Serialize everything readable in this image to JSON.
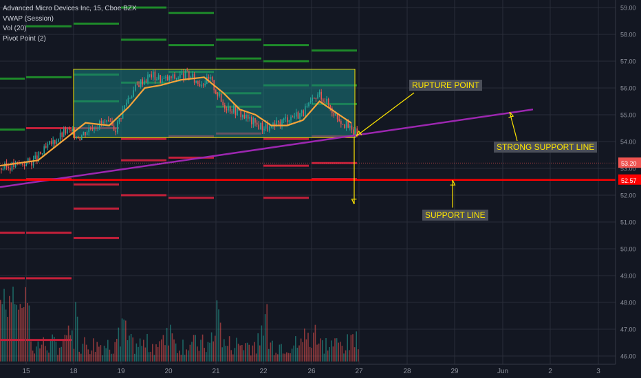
{
  "legend": {
    "title": "Advanced Micro Devices Inc, 15, Cboe BZX",
    "indicator1": "VWAP (Session)",
    "indicator2": "Vol (20)",
    "indicator3": "Pivot Point (2)"
  },
  "annotations": {
    "rupture": "RUPTURE POINT",
    "strong_support": "STRONG SUPPORT LINE",
    "support": "SUPPORT LINE"
  },
  "price_labels": {
    "last": "53.20",
    "support": "52.57"
  },
  "colors": {
    "background": "#131722",
    "grid": "#2a2e39",
    "candle_up": "#26a69a",
    "candle_down": "#ef5350",
    "vwap": "#f7a43a",
    "trendline": "#9c27b0",
    "support": "#ff0000",
    "box_fill": "#1a7b80",
    "box_border": "#ffe600",
    "annotation_text": "#ffe600",
    "pivot_green": "#1e8a2a",
    "pivot_red": "#c4203a",
    "last_price": "#ef5350"
  },
  "chart_data": {
    "type": "candlestick",
    "title": "Advanced Micro Devices Inc, 15, Cboe BZX",
    "x_ticks": [
      "15",
      "18",
      "19",
      "20",
      "21",
      "22",
      "26",
      "27",
      "28",
      "29",
      "Jun",
      "2",
      "3"
    ],
    "y_ticks": [
      "46.00",
      "47.00",
      "48.00",
      "49.00",
      "50.00",
      "51.00",
      "52.00",
      "53.00",
      "54.00",
      "55.00",
      "56.00",
      "57.00",
      "58.00",
      "59.00"
    ],
    "ylim": [
      45.85,
      59.15
    ],
    "series": [
      {
        "name": "Price",
        "points": [
          [
            "15",
            53.3
          ],
          [
            "15",
            53.9
          ],
          [
            "15",
            54.4
          ],
          [
            "18",
            54.2
          ],
          [
            "18",
            54.6
          ],
          [
            "18",
            54.7
          ],
          [
            "18",
            54.5
          ],
          [
            "19",
            55.6
          ],
          [
            "19",
            56.2
          ],
          [
            "19",
            56.5
          ],
          [
            "19",
            56.3
          ],
          [
            "20",
            56.4
          ],
          [
            "20",
            56.5
          ],
          [
            "20",
            56.2
          ],
          [
            "20",
            56.3
          ],
          [
            "21",
            55.4
          ],
          [
            "21",
            55.2
          ],
          [
            "21",
            54.9
          ],
          [
            "21",
            54.6
          ],
          [
            "22",
            54.5
          ],
          [
            "22",
            54.9
          ],
          [
            "22",
            55.1
          ],
          [
            "26",
            55.8
          ],
          [
            "26",
            55.0
          ],
          [
            "26",
            54.4
          ],
          [
            "27",
            54.1
          ],
          [
            "27",
            53.2
          ]
        ]
      },
      {
        "name": "VWAP (Session)",
        "points": [
          [
            "15",
            53.3
          ],
          [
            "15",
            54.0
          ],
          [
            "18",
            54.7
          ],
          [
            "18",
            54.6
          ],
          [
            "19",
            55.3
          ],
          [
            "19",
            56.0
          ],
          [
            "19",
            56.1
          ],
          [
            "20",
            56.3
          ],
          [
            "20",
            56.4
          ],
          [
            "21",
            55.8
          ],
          [
            "21",
            55.2
          ],
          [
            "21",
            55.0
          ],
          [
            "22",
            54.6
          ],
          [
            "22",
            54.6
          ],
          [
            "22",
            54.8
          ],
          [
            "26",
            55.5
          ],
          [
            "26",
            55.1
          ],
          [
            "26",
            54.7
          ]
        ]
      }
    ],
    "support_level": 52.57,
    "last_price": 53.2,
    "consolidation_box": {
      "x_from": "18",
      "x_to": "27",
      "y_from": 54.15,
      "y_to": 56.7
    },
    "trendline": {
      "from": [
        "15",
        52.3
      ],
      "to": [
        "2",
        55.2
      ]
    },
    "pivot_levels": [
      {
        "day": "15",
        "levels": [
          58.3,
          56.4,
          54.5,
          52.6,
          50.6,
          48.9,
          46.6
        ]
      },
      {
        "day": "18",
        "levels": [
          58.4,
          56.5,
          55.5,
          54.5,
          52.4,
          51.5,
          50.4
        ]
      },
      {
        "day": "19",
        "levels": [
          59.0,
          57.8,
          56.2,
          54.1,
          53.3,
          52.0
        ]
      },
      {
        "day": "20",
        "levels": [
          58.8,
          57.6,
          56.6,
          54.2,
          53.4,
          51.9
        ]
      },
      {
        "day": "21",
        "levels": [
          57.8,
          57.1,
          55.8,
          55.3,
          54.3
        ]
      },
      {
        "day": "22",
        "levels": [
          57.6,
          57.0,
          56.1,
          54.1,
          53.1,
          51.9
        ]
      },
      {
        "day": "26",
        "levels": [
          57.4,
          56.1,
          55.4,
          54.2,
          53.2,
          52.6
        ]
      }
    ],
    "volume_peaks": {
      "15": 2.9,
      "18": 2.6,
      "19": 2.1,
      "20": 1.9,
      "21": 2.5,
      "22": 2.6,
      "26": 2.0,
      "27": 2.0
    }
  }
}
